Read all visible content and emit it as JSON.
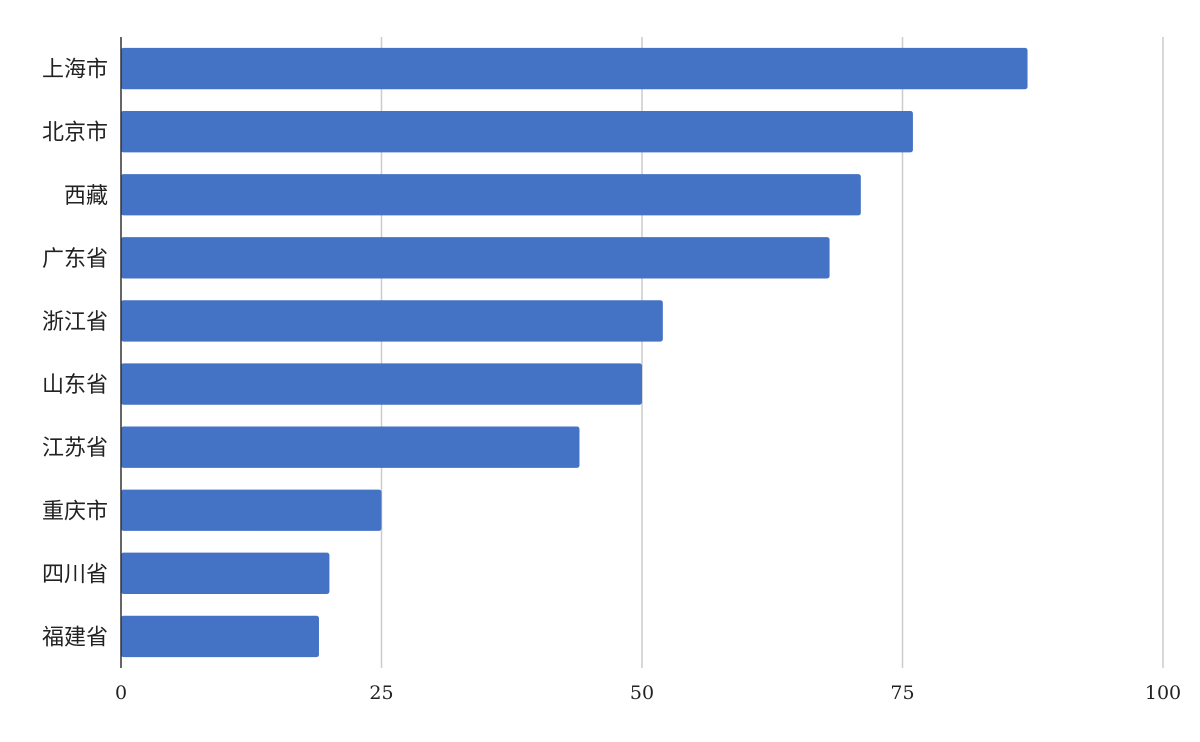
{
  "chart_data": {
    "type": "bar",
    "orientation": "horizontal",
    "title": "",
    "xlabel": "",
    "ylabel": "",
    "categories": [
      "上海市",
      "北京市",
      "西藏",
      "广东省",
      "浙江省",
      "山东省",
      "江苏省",
      "重庆市",
      "四川省",
      "福建省"
    ],
    "values": [
      87,
      76,
      71,
      68,
      52,
      50,
      44,
      25,
      20,
      19
    ],
    "xlim": [
      0,
      100
    ],
    "xticks": [
      "0",
      "25",
      "50",
      "75",
      "100"
    ],
    "grid": true,
    "legend": "none",
    "colors": {
      "bar": "#4472C4",
      "grid": "#CCCCCC",
      "axis": "#333333"
    }
  }
}
